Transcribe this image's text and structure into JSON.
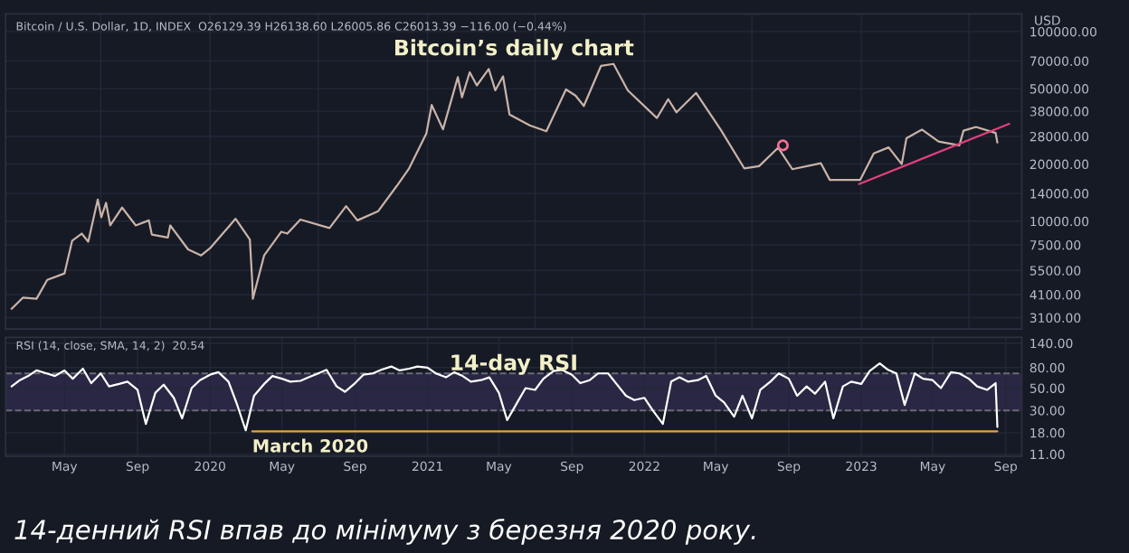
{
  "chart_data": [
    {
      "type": "line",
      "title": "Bitcoin’s daily chart",
      "log": "y",
      "grid": true,
      "tick_labels": "y",
      "annotations": [
        "Bitcoin / U.S. Dollar, 1D, INDEX  O26129.39 H26138.60 L26005.86 C26013.39 −116.00 (−0.44%)",
        "USD"
      ],
      "xlim": [
        "2019-01-22",
        "2023-09-28"
      ],
      "ylim": [
        2700,
        124000
      ],
      "yticks": [
        {
          "value": 100000,
          "label": "100000.00"
        },
        {
          "value": 70000,
          "label": "70000.00"
        },
        {
          "value": 50000,
          "label": "50000.00"
        },
        {
          "value": 38000,
          "label": "38000.00"
        },
        {
          "value": 28000,
          "label": "28000.00"
        },
        {
          "value": 20000,
          "label": "20000.00"
        },
        {
          "value": 14000,
          "label": "14000.00"
        },
        {
          "value": 10000,
          "label": "10000.00"
        },
        {
          "value": 7500,
          "label": "7500.00"
        },
        {
          "value": 5500,
          "label": "5500.00"
        },
        {
          "value": 4100,
          "label": "4100.00"
        },
        {
          "value": 3100,
          "label": "3100.00"
        }
      ],
      "series": [
        {
          "color": "#c9b3a8",
          "x": [
            "2019-02-01",
            "2019-02-20",
            "2019-03-15",
            "2019-04-02",
            "2019-05-01",
            "2019-05-14",
            "2019-05-30",
            "2019-06-10",
            "2019-06-26",
            "2019-07-02",
            "2019-07-10",
            "2019-07-17",
            "2019-08-06",
            "2019-08-29",
            "2019-09-20",
            "2019-09-25",
            "2019-10-22",
            "2019-10-26",
            "2019-11-25",
            "2019-12-17",
            "2020-01-01",
            "2020-02-13",
            "2020-03-08",
            "2020-03-12",
            "2020-03-13",
            "2020-04-01",
            "2020-04-30",
            "2020-05-10",
            "2020-06-01",
            "2020-07-20",
            "2020-08-17",
            "2020-09-05",
            "2020-10-10",
            "2020-11-10",
            "2020-12-01",
            "2020-12-30",
            "2021-01-08",
            "2021-01-27",
            "2021-02-21",
            "2021-02-28",
            "2021-03-13",
            "2021-03-25",
            "2021-04-14",
            "2021-04-25",
            "2021-05-08",
            "2021-05-19",
            "2021-06-22",
            "2021-07-20",
            "2021-08-22",
            "2021-09-07",
            "2021-09-21",
            "2021-10-20",
            "2021-11-10",
            "2021-12-04",
            "2022-01-22",
            "2022-02-10",
            "2022-02-24",
            "2022-03-29",
            "2022-05-09",
            "2022-06-18",
            "2022-07-13",
            "2022-08-14",
            "2022-09-07",
            "2022-10-25",
            "2022-11-09",
            "2022-12-30",
            "2023-01-22",
            "2023-02-16",
            "2023-03-10",
            "2023-03-18",
            "2023-04-13",
            "2023-05-11",
            "2023-06-15",
            "2023-06-22",
            "2023-07-13",
            "2023-08-15",
            "2023-08-18"
          ],
          "values": [
            3450,
            3950,
            3900,
            4900,
            5300,
            7900,
            8600,
            7800,
            13000,
            10500,
            12500,
            9500,
            11800,
            9500,
            10100,
            8500,
            8200,
            9500,
            7100,
            6600,
            7200,
            10300,
            8000,
            4800,
            3900,
            6600,
            8800,
            8600,
            10200,
            9200,
            12000,
            10100,
            11300,
            15300,
            19000,
            29000,
            41000,
            30500,
            57500,
            45000,
            61000,
            52000,
            63500,
            49000,
            58000,
            36500,
            32000,
            29800,
            49500,
            46000,
            40500,
            66000,
            67500,
            49000,
            35000,
            44000,
            37500,
            47500,
            30500,
            19000,
            19500,
            24400,
            18800,
            20200,
            16500,
            16500,
            22800,
            24500,
            20000,
            27400,
            30400,
            26300,
            25100,
            30000,
            31400,
            29200,
            26000
          ]
        },
        {
          "color": "#e0407a",
          "x": [
            "2022-12-28",
            "2023-09-07"
          ],
          "values": [
            15700,
            32600
          ]
        },
        {
          "type": "scatter",
          "marker": "circle",
          "color": "#f07090",
          "x": [
            "2022-08-22"
          ],
          "values": [
            25100
          ]
        }
      ]
    },
    {
      "type": "line",
      "title": "14-day RSI",
      "log": "y",
      "grid": true,
      "annotations": [
        "RSI (14, close, SMA, 14, 2)  20.54",
        {
          "text": "March 2020",
          "x": "2020-03-12",
          "y": 18.6
        },
        "14-денний RSI впав до мінімуму з березня 2020 року."
      ],
      "xlim": [
        "2019-01-22",
        "2023-09-28"
      ],
      "ylim": [
        10.5,
        160
      ],
      "xticks": [
        {
          "value": "2019-05-01",
          "label": "May"
        },
        {
          "value": "2019-09-01",
          "label": "Sep"
        },
        {
          "value": "2020-01-01",
          "label": "2020"
        },
        {
          "value": "2020-05-01",
          "label": "May"
        },
        {
          "value": "2020-09-01",
          "label": "Sep"
        },
        {
          "value": "2021-01-01",
          "label": "2021"
        },
        {
          "value": "2021-05-01",
          "label": "May"
        },
        {
          "value": "2021-09-01",
          "label": "Sep"
        },
        {
          "value": "2022-01-01",
          "label": "2022"
        },
        {
          "value": "2022-05-01",
          "label": "May"
        },
        {
          "value": "2022-09-01",
          "label": "Sep"
        },
        {
          "value": "2023-01-01",
          "label": "2023"
        },
        {
          "value": "2023-05-01",
          "label": "May"
        },
        {
          "value": "2023-09-01",
          "label": "Sep"
        }
      ],
      "yticks": [
        {
          "value": 140,
          "label": "140.00"
        },
        {
          "value": 80,
          "label": "80.00"
        },
        {
          "value": 50,
          "label": "50.00"
        },
        {
          "value": 30,
          "label": "30.00"
        },
        {
          "value": 18,
          "label": "18.00"
        },
        {
          "value": 11,
          "label": "11.00"
        }
      ],
      "bands": [
        {
          "axis": "y",
          "from": 30,
          "to": 70,
          "color": "#2a2745"
        }
      ],
      "ref_lines": [
        {
          "axis": "y",
          "value": 70,
          "line_style": "dashed",
          "color": "#6a6a7a"
        },
        {
          "axis": "y",
          "value": 30,
          "line_style": "dashed",
          "color": "#6a6a7a"
        }
      ],
      "series": [
        {
          "color": "#ffffff",
          "x": [
            "2019-02-01",
            "2019-02-15",
            "2019-03-01",
            "2019-03-15",
            "2019-04-01",
            "2019-04-15",
            "2019-05-01",
            "2019-05-15",
            "2019-06-01",
            "2019-06-15",
            "2019-07-01",
            "2019-07-15",
            "2019-08-01",
            "2019-08-15",
            "2019-09-01",
            "2019-09-15",
            "2019-10-01",
            "2019-10-15",
            "2019-11-01",
            "2019-11-15",
            "2019-12-01",
            "2019-12-15",
            "2020-01-01",
            "2020-01-15",
            "2020-02-01",
            "2020-02-15",
            "2020-03-01",
            "2020-03-15",
            "2020-04-01",
            "2020-04-15",
            "2020-05-01",
            "2020-05-15",
            "2020-06-01",
            "2020-06-15",
            "2020-07-01",
            "2020-07-15",
            "2020-08-01",
            "2020-08-15",
            "2020-09-01",
            "2020-09-15",
            "2020-10-01",
            "2020-10-15",
            "2020-11-01",
            "2020-11-15",
            "2020-12-01",
            "2020-12-15",
            "2021-01-01",
            "2021-01-15",
            "2021-02-01",
            "2021-02-15",
            "2021-03-01",
            "2021-03-15",
            "2021-04-01",
            "2021-04-15",
            "2021-05-01",
            "2021-05-15",
            "2021-06-01",
            "2021-06-15",
            "2021-07-01",
            "2021-07-15",
            "2021-08-01",
            "2021-08-15",
            "2021-09-01",
            "2021-09-15",
            "2021-10-01",
            "2021-10-15",
            "2021-11-01",
            "2021-11-15",
            "2021-12-01",
            "2021-12-15",
            "2022-01-01",
            "2022-01-15",
            "2022-02-01",
            "2022-02-15",
            "2022-03-01",
            "2022-03-15",
            "2022-04-01",
            "2022-04-15",
            "2022-05-01",
            "2022-05-15",
            "2022-06-01",
            "2022-06-15",
            "2022-07-01",
            "2022-07-15",
            "2022-08-01",
            "2022-08-15",
            "2022-09-01",
            "2022-09-15",
            "2022-10-01",
            "2022-10-15",
            "2022-11-01",
            "2022-11-15",
            "2022-12-01",
            "2022-12-15",
            "2023-01-01",
            "2023-01-15",
            "2023-02-01",
            "2023-02-15",
            "2023-03-01",
            "2023-03-15",
            "2023-04-01",
            "2023-04-15",
            "2023-05-01",
            "2023-05-15",
            "2023-06-01",
            "2023-06-15",
            "2023-07-01",
            "2023-07-15",
            "2023-08-01",
            "2023-08-15",
            "2023-08-18"
          ],
          "values": [
            52,
            60,
            66,
            75,
            70,
            66,
            75,
            62,
            78,
            56,
            70,
            52,
            55,
            58,
            48,
            22,
            45,
            54,
            40,
            25,
            50,
            60,
            68,
            72,
            58,
            35,
            19,
            42,
            55,
            66,
            62,
            58,
            59,
            64,
            70,
            76,
            52,
            46,
            56,
            68,
            70,
            76,
            82,
            75,
            78,
            82,
            80,
            70,
            64,
            72,
            66,
            58,
            60,
            64,
            45,
            24,
            36,
            50,
            48,
            62,
            74,
            76,
            68,
            56,
            60,
            70,
            70,
            55,
            42,
            38,
            40,
            30,
            22,
            58,
            64,
            58,
            60,
            66,
            42,
            36,
            26,
            42,
            25,
            48,
            58,
            70,
            62,
            42,
            52,
            44,
            58,
            25,
            52,
            58,
            55,
            74,
            88,
            76,
            70,
            34,
            70,
            62,
            60,
            50,
            72,
            70,
            62,
            52,
            48,
            56,
            20.5
          ]
        },
        {
          "color": "#e8a040",
          "x": [
            "2020-03-12",
            "2023-08-18"
          ],
          "values": [
            18.6,
            18.6
          ]
        }
      ]
    }
  ]
}
